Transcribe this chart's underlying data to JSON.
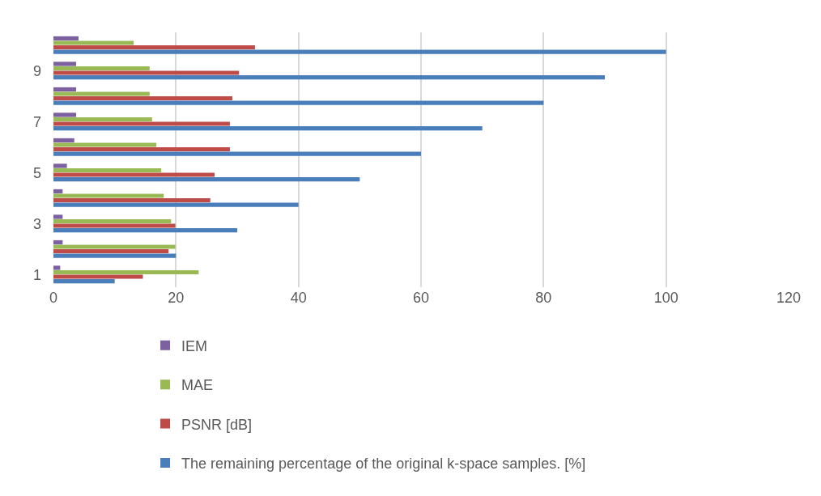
{
  "chart_data": {
    "type": "bar",
    "orientation": "horizontal",
    "categories": [
      null,
      "9",
      null,
      "7",
      null,
      "5",
      null,
      "3",
      null,
      "1"
    ],
    "series": [
      {
        "name": "IEM",
        "color": "#7d60a0",
        "values": [
          4.1,
          3.7,
          3.7,
          3.7,
          3.4,
          2.2,
          1.5,
          1.5,
          1.5,
          1.1
        ]
      },
      {
        "name": "MAE",
        "color": "#98b954",
        "values": [
          13.1,
          15.7,
          15.7,
          16.1,
          16.8,
          17.6,
          18.0,
          19.2,
          19.9,
          23.7
        ]
      },
      {
        "name": "PSNR [dB]",
        "color": "#be4b48",
        "values": [
          32.9,
          30.3,
          29.2,
          28.8,
          28.8,
          26.3,
          25.6,
          19.9,
          18.8,
          14.6
        ]
      },
      {
        "name": "The remaining percentage of the original k-space samples. [%]",
        "color": "#4a7ebb",
        "values": [
          100,
          90,
          80,
          70,
          60,
          50,
          40,
          30,
          20,
          10
        ]
      }
    ],
    "xlim": [
      0,
      120
    ],
    "xticks": [
      0,
      20,
      40,
      60,
      80,
      100,
      120
    ],
    "grid": "x",
    "legend": "bottom"
  }
}
